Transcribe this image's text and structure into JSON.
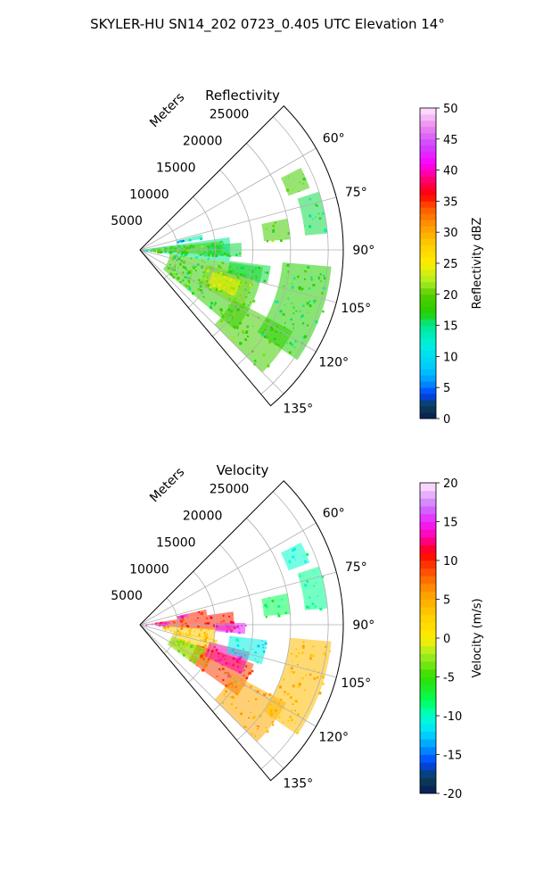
{
  "figure": {
    "suptitle": "SKYLER-HU  SN14_202  0723_0.405 UTC Elevation 14°"
  },
  "chart_data": [
    {
      "type": "heatmap",
      "projection": "polar-sector",
      "title": "Reflectivity",
      "range_label": "Meters",
      "range_ticks": [
        "5000",
        "10000",
        "15000",
        "20000",
        "25000"
      ],
      "range_values": [
        5000,
        10000,
        15000,
        20000,
        25000
      ],
      "range_max": 27000,
      "theta_min": 45,
      "theta_max": 140,
      "angle_ticks": [
        "60°",
        "75°",
        "90°",
        "105°",
        "120°",
        "135°"
      ],
      "angle_values": [
        60,
        75,
        90,
        105,
        120,
        135
      ],
      "grid": true,
      "colorbar": {
        "label": "Reflectivity dBZ",
        "min": 0,
        "max": 50,
        "ticks": [
          "0",
          "5",
          "10",
          "15",
          "20",
          "25",
          "30",
          "35",
          "40",
          "45",
          "50"
        ],
        "tick_values": [
          0,
          5,
          10,
          15,
          20,
          25,
          30,
          35,
          40,
          45,
          50
        ]
      },
      "echoes": [
        {
          "az_min": 82,
          "az_max": 98,
          "r_min": 300,
          "r_max": 12000,
          "value": 15
        },
        {
          "az_min": 84,
          "az_max": 94,
          "r_min": 1500,
          "r_max": 11000,
          "value": 20
        },
        {
          "az_min": 86,
          "az_max": 94,
          "r_min": 9000,
          "r_max": 13500,
          "value": 16
        },
        {
          "az_min": 76,
          "az_max": 80,
          "r_min": 5000,
          "r_max": 8500,
          "value": 14
        },
        {
          "az_min": 77,
          "az_max": 79,
          "r_min": 5000,
          "r_max": 6000,
          "value": 5
        },
        {
          "az_min": 98,
          "az_max": 130,
          "r_min": 4000,
          "r_max": 16500,
          "value": 18
        },
        {
          "az_min": 103,
          "az_max": 120,
          "r_min": 9000,
          "r_max": 15500,
          "value": 21
        },
        {
          "az_min": 107,
          "az_max": 116,
          "r_min": 10000,
          "r_max": 14000,
          "value": 25
        },
        {
          "az_min": 97,
          "az_max": 105,
          "r_min": 12000,
          "r_max": 17500,
          "value": 16
        },
        {
          "az_min": 118,
          "az_max": 135,
          "r_min": 14000,
          "r_max": 23000,
          "value": 19
        },
        {
          "az_min": 78,
          "az_max": 86,
          "r_min": 16500,
          "r_max": 20000,
          "value": 19
        },
        {
          "az_min": 63,
          "az_max": 70,
          "r_min": 21000,
          "r_max": 24000,
          "value": 19
        },
        {
          "az_min": 72,
          "az_max": 85,
          "r_min": 22000,
          "r_max": 25000,
          "value": 16
        },
        {
          "az_min": 95,
          "az_max": 125,
          "r_min": 19000,
          "r_max": 25500,
          "value": 17
        }
      ]
    },
    {
      "type": "heatmap",
      "projection": "polar-sector",
      "title": "Velocity",
      "range_label": "Meters",
      "range_ticks": [
        "5000",
        "10000",
        "15000",
        "20000",
        "25000"
      ],
      "range_values": [
        5000,
        10000,
        15000,
        20000,
        25000
      ],
      "range_max": 27000,
      "theta_min": 45,
      "theta_max": 140,
      "angle_ticks": [
        "60°",
        "75°",
        "90°",
        "105°",
        "120°",
        "135°"
      ],
      "angle_values": [
        60,
        75,
        90,
        105,
        120,
        135
      ],
      "grid": true,
      "colorbar": {
        "label": "Velocity (m/s)",
        "min": -20,
        "max": 20,
        "ticks": [
          "-20",
          "-15",
          "-10",
          "-5",
          "0",
          "5",
          "10",
          "15",
          "20"
        ],
        "tick_values": [
          -20,
          -15,
          -10,
          -5,
          0,
          5,
          10,
          15,
          20
        ]
      },
      "echoes": [
        {
          "az_min": 82,
          "az_max": 94,
          "r_min": 2000,
          "r_max": 12500,
          "value": 10
        },
        {
          "az_min": 84,
          "az_max": 89,
          "r_min": 300,
          "r_max": 4000,
          "value": 15
        },
        {
          "az_min": 77,
          "az_max": 82,
          "r_min": 5000,
          "r_max": 9000,
          "value": 10
        },
        {
          "az_min": 77,
          "az_max": 80,
          "r_min": 5000,
          "r_max": 6500,
          "value": 15
        },
        {
          "az_min": 89,
          "az_max": 95,
          "r_min": 10000,
          "r_max": 14000,
          "value": 15
        },
        {
          "az_min": 93,
          "az_max": 102,
          "r_min": 3000,
          "r_max": 10000,
          "value": 3
        },
        {
          "az_min": 101,
          "az_max": 124,
          "r_min": 4500,
          "r_max": 10500,
          "value": 3
        },
        {
          "az_min": 109,
          "az_max": 126,
          "r_min": 8000,
          "r_max": 16000,
          "value": 9
        },
        {
          "az_min": 104,
          "az_max": 116,
          "r_min": 9500,
          "r_max": 15000,
          "value": 13
        },
        {
          "az_min": 97,
          "az_max": 108,
          "r_min": 12000,
          "r_max": 17000,
          "value": -11
        },
        {
          "az_min": 110,
          "az_max": 126,
          "r_min": 4500,
          "r_max": 9000,
          "value": -3
        },
        {
          "az_min": 118,
          "az_max": 135,
          "r_min": 14000,
          "r_max": 22000,
          "value": 5
        },
        {
          "az_min": 78,
          "az_max": 86,
          "r_min": 16500,
          "r_max": 20000,
          "value": -8
        },
        {
          "az_min": 63,
          "az_max": 70,
          "r_min": 21000,
          "r_max": 24000,
          "value": -10
        },
        {
          "az_min": 72,
          "az_max": 85,
          "r_min": 22000,
          "r_max": 25000,
          "value": -9
        },
        {
          "az_min": 95,
          "az_max": 125,
          "r_min": 20000,
          "r_max": 25500,
          "value": 4
        }
      ]
    }
  ]
}
